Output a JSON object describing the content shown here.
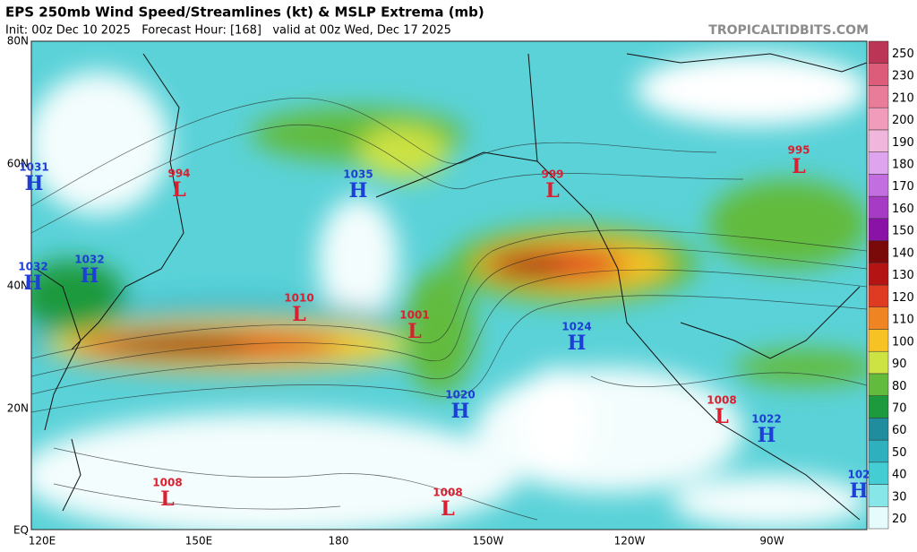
{
  "header": {
    "title": "EPS 250mb Wind Speed/Streamlines (kt) & MSLP Extrema (mb)",
    "subtitle": "Init: 00z Dec 10 2025   Forecast Hour: [168]   valid at 00z Wed, Dec 17 2025",
    "source": "TROPICALTIDBITS.COM"
  },
  "latitude_labels": [
    "80N",
    "60N",
    "40N",
    "20N",
    "EQ"
  ],
  "longitude_labels": [
    "120E",
    "150E",
    "180",
    "150W",
    "120W",
    "90W"
  ],
  "pressure_centers": [
    {
      "kind": "H",
      "pressure": 1031
    },
    {
      "kind": "L",
      "pressure": 994
    },
    {
      "kind": "H",
      "pressure": 1035
    },
    {
      "kind": "L",
      "pressure": 999
    },
    {
      "kind": "L",
      "pressure": 995
    },
    {
      "kind": "H",
      "pressure": 1032
    },
    {
      "kind": "H",
      "pressure": 1032
    },
    {
      "kind": "L",
      "pressure": 1010
    },
    {
      "kind": "L",
      "pressure": 1001
    },
    {
      "kind": "H",
      "pressure": 1024
    },
    {
      "kind": "H",
      "pressure": 1020
    },
    {
      "kind": "L",
      "pressure": 1008
    },
    {
      "kind": "H",
      "pressure": 1022
    },
    {
      "kind": "H",
      "pressure": 102
    },
    {
      "kind": "L",
      "pressure": 1008
    },
    {
      "kind": "L",
      "pressure": 1008
    }
  ],
  "colorbar": {
    "ticks": [
      20,
      30,
      40,
      50,
      60,
      70,
      80,
      90,
      100,
      110,
      120,
      130,
      140,
      150,
      160,
      170,
      180,
      190,
      200,
      210,
      230,
      250
    ],
    "colors": [
      "#e6fbfb",
      "#86e6e8",
      "#45cdd4",
      "#2fb0bf",
      "#1f8d9e",
      "#1e9a3e",
      "#62bb3c",
      "#cde243",
      "#f7c324",
      "#ef8422",
      "#df3a22",
      "#b41414",
      "#7a0a0a",
      "#8a12a6",
      "#a63cc6",
      "#c26ee0",
      "#dea4ee",
      "#f0b6dc",
      "#f29cbc",
      "#e97c98",
      "#dc5c7a",
      "#bb3656"
    ]
  }
}
